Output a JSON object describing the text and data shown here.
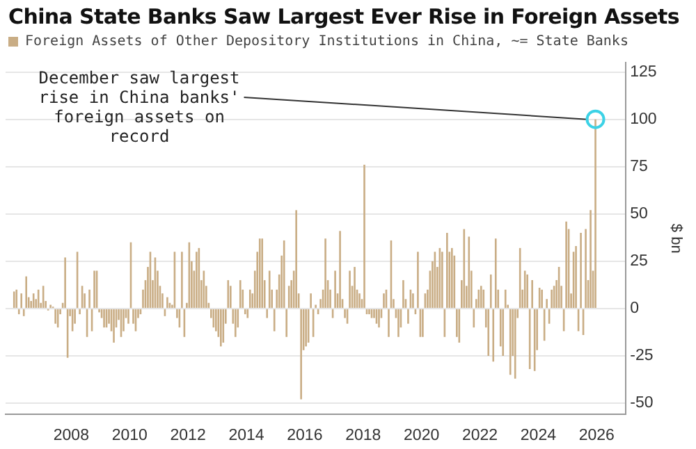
{
  "chart_data": {
    "type": "bar",
    "title": "China State Banks Saw Largest Ever Rise in Foreign Assets",
    "ylabel": "$ bn",
    "series": [
      {
        "name": "Foreign Assets of Other Depository Institutions in China, ~= State Banks",
        "color": "#c9ad85",
        "x": [
          "2006-01",
          "2006-02",
          "2006-03",
          "2006-04",
          "2006-05",
          "2006-06",
          "2006-07",
          "2006-08",
          "2006-09",
          "2006-10",
          "2006-11",
          "2006-12",
          "2007-01",
          "2007-02",
          "2007-03",
          "2007-04",
          "2007-05",
          "2007-06",
          "2007-07",
          "2007-08",
          "2007-09",
          "2007-10",
          "2007-11",
          "2007-12",
          "2008-01",
          "2008-02",
          "2008-03",
          "2008-04",
          "2008-05",
          "2008-06",
          "2008-07",
          "2008-08",
          "2008-09",
          "2008-10",
          "2008-11",
          "2008-12",
          "2009-01",
          "2009-02",
          "2009-03",
          "2009-04",
          "2009-05",
          "2009-06",
          "2009-07",
          "2009-08",
          "2009-09",
          "2009-10",
          "2009-11",
          "2009-12",
          "2010-01",
          "2010-02",
          "2010-03",
          "2010-04",
          "2010-05",
          "2010-06",
          "2010-07",
          "2010-08",
          "2010-09",
          "2010-10",
          "2010-11",
          "2010-12",
          "2011-01",
          "2011-02",
          "2011-03",
          "2011-04",
          "2011-05",
          "2011-06",
          "2011-07",
          "2011-08",
          "2011-09",
          "2011-10",
          "2011-11",
          "2011-12",
          "2012-01",
          "2012-02",
          "2012-03",
          "2012-04",
          "2012-05",
          "2012-06",
          "2012-07",
          "2012-08",
          "2012-09",
          "2012-10",
          "2012-11",
          "2012-12",
          "2013-01",
          "2013-02",
          "2013-03",
          "2013-04",
          "2013-05",
          "2013-06",
          "2013-07",
          "2013-08",
          "2013-09",
          "2013-10",
          "2013-11",
          "2013-12",
          "2014-01",
          "2014-02",
          "2014-03",
          "2014-04",
          "2014-05",
          "2014-06",
          "2014-07",
          "2014-08",
          "2014-09",
          "2014-10",
          "2014-11",
          "2014-12",
          "2015-01",
          "2015-02",
          "2015-03",
          "2015-04",
          "2015-05",
          "2015-06",
          "2015-07",
          "2015-08",
          "2015-09",
          "2015-10",
          "2015-11",
          "2015-12",
          "2016-01",
          "2016-02",
          "2016-03",
          "2016-04",
          "2016-05",
          "2016-06",
          "2016-07",
          "2016-08",
          "2016-09",
          "2016-10",
          "2016-11",
          "2016-12",
          "2017-01",
          "2017-02",
          "2017-03",
          "2017-04",
          "2017-05",
          "2017-06",
          "2017-07",
          "2017-08",
          "2017-09",
          "2017-10",
          "2017-11",
          "2017-12",
          "2018-01",
          "2018-02",
          "2018-03",
          "2018-04",
          "2018-05",
          "2018-06",
          "2018-07",
          "2018-08",
          "2018-09",
          "2018-10",
          "2018-11",
          "2018-12",
          "2019-01",
          "2019-02",
          "2019-03",
          "2019-04",
          "2019-05",
          "2019-06",
          "2019-07",
          "2019-08",
          "2019-09",
          "2019-10",
          "2019-11",
          "2019-12",
          "2020-01",
          "2020-02",
          "2020-03",
          "2020-04",
          "2020-05",
          "2020-06",
          "2020-07",
          "2020-08",
          "2020-09",
          "2020-10",
          "2020-11",
          "2020-12",
          "2021-01",
          "2021-02",
          "2021-03",
          "2021-04",
          "2021-05",
          "2021-06",
          "2021-07",
          "2021-08",
          "2021-09",
          "2021-10",
          "2021-11",
          "2021-12",
          "2022-01",
          "2022-02",
          "2022-03",
          "2022-04",
          "2022-05",
          "2022-06",
          "2022-07",
          "2022-08",
          "2022-09",
          "2022-10",
          "2022-11",
          "2022-12",
          "2023-01",
          "2023-02",
          "2023-03",
          "2023-04",
          "2023-05",
          "2023-06",
          "2023-07",
          "2023-08",
          "2023-09",
          "2023-10",
          "2023-11",
          "2023-12",
          "2024-01",
          "2024-02",
          "2024-03",
          "2024-04",
          "2024-05",
          "2024-06",
          "2024-07",
          "2024-08",
          "2024-09",
          "2024-10",
          "2024-11",
          "2024-12",
          "2025-01",
          "2025-02",
          "2025-03",
          "2025-04",
          "2025-05",
          "2025-06",
          "2025-07",
          "2025-08",
          "2025-09",
          "2025-10",
          "2025-11",
          "2025-12"
        ],
        "values": [
          9,
          10,
          -3,
          8,
          -4,
          17,
          6,
          4,
          8,
          5,
          10,
          3,
          12,
          4,
          -1,
          2,
          1,
          -8,
          -10,
          -3,
          3,
          27,
          -26,
          -4,
          -12,
          -8,
          30,
          -3,
          12,
          8,
          -15,
          10,
          -12,
          20,
          20,
          -2,
          -5,
          -10,
          -10,
          -8,
          -12,
          -18,
          -10,
          -6,
          -15,
          -12,
          -5,
          -8,
          35,
          -8,
          -12,
          -5,
          -3,
          10,
          15,
          22,
          30,
          15,
          27,
          20,
          12,
          8,
          -4,
          6,
          3,
          2,
          30,
          -5,
          -10,
          30,
          -15,
          3,
          35,
          25,
          20,
          30,
          32,
          15,
          20,
          12,
          3,
          -5,
          -10,
          -12,
          -15,
          -20,
          -18,
          -8,
          15,
          12,
          -8,
          -15,
          -10,
          15,
          10,
          -3,
          -5,
          10,
          8,
          20,
          30,
          37,
          37,
          15,
          -5,
          20,
          10,
          -12,
          10,
          18,
          28,
          36,
          -15,
          12,
          15,
          20,
          52,
          8,
          -48,
          -22,
          -20,
          -18,
          8,
          -15,
          2,
          -3,
          5,
          10,
          37,
          15,
          10,
          -5,
          20,
          8,
          41,
          5,
          -5,
          -8,
          20,
          12,
          22,
          10,
          8,
          5,
          76,
          -3,
          -3,
          -5,
          -5,
          -8,
          -10,
          -5,
          8,
          10,
          -15,
          36,
          5,
          -5,
          -15,
          -10,
          15,
          5,
          -8,
          10,
          8,
          -3,
          30,
          -15,
          -15,
          8,
          10,
          20,
          25,
          30,
          22,
          32,
          30,
          -15,
          40,
          30,
          32,
          28,
          -15,
          -18,
          15,
          42,
          12,
          38,
          20,
          -10,
          5,
          10,
          12,
          10,
          -10,
          -25,
          18,
          -28,
          37,
          10,
          -20,
          -25,
          10,
          2,
          -35,
          -25,
          -37,
          -5,
          32,
          10,
          20,
          18,
          -32,
          15,
          -33,
          -22,
          11,
          10,
          -17,
          5,
          -8,
          10,
          12,
          15,
          22,
          12,
          -12,
          46,
          42,
          8,
          30,
          33,
          -12,
          40,
          -14,
          42,
          15,
          52,
          20,
          100
        ]
      }
    ],
    "xlim": [
      "2005-10",
      "2027-01"
    ],
    "xticks": [
      "2008",
      "2010",
      "2012",
      "2014",
      "2016",
      "2018",
      "2020",
      "2022",
      "2024",
      "2026"
    ],
    "ylim": [
      -56,
      130
    ],
    "yticks": [
      -50,
      -25,
      0,
      25,
      50,
      75,
      100,
      125
    ],
    "grid": "y",
    "legend": "top left",
    "annotations": [
      {
        "text": "December saw largest rise in China banks' foreign assets on record",
        "x": "2025-12",
        "y": 100
      }
    ]
  }
}
